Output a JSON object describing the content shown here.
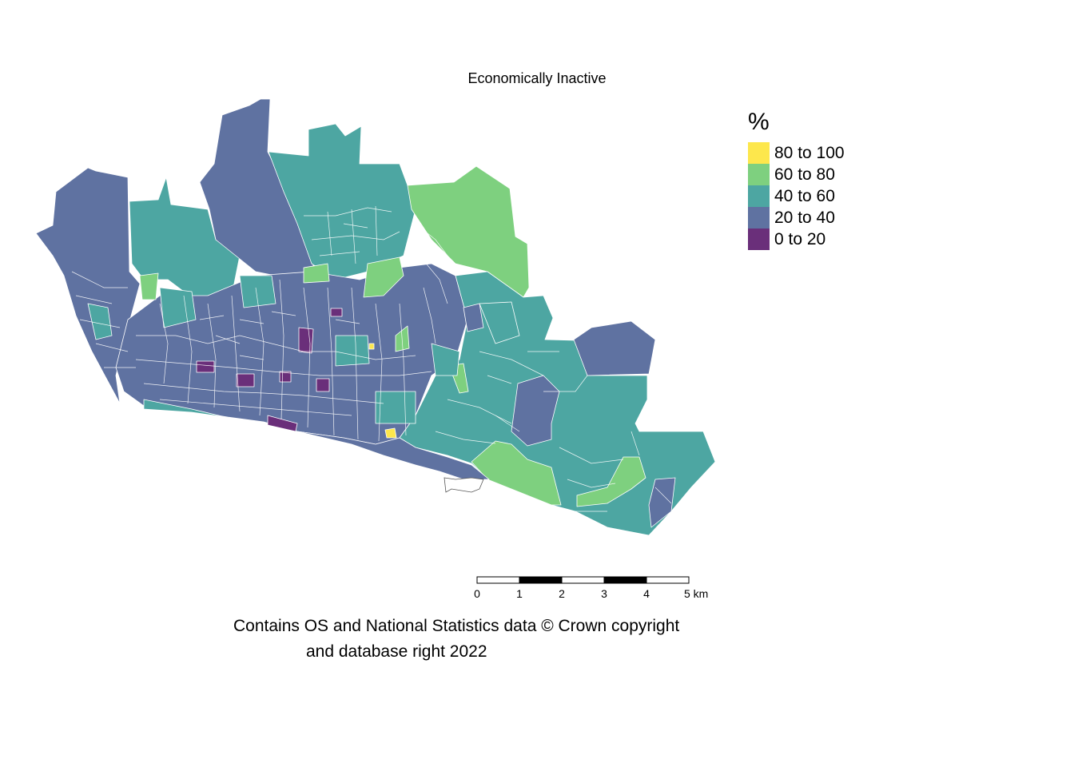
{
  "title": "Economically Inactive",
  "legend": {
    "title": "%",
    "items": [
      {
        "label": "80 to 100",
        "color": "#fde74c"
      },
      {
        "label": "60 to 80",
        "color": "#7ed07f"
      },
      {
        "label": "40 to 60",
        "color": "#4da6a2"
      },
      {
        "label": "20 to 40",
        "color": "#5f72a1"
      },
      {
        "label": "0 to 20",
        "color": "#6a2f7a"
      }
    ]
  },
  "scalebar": {
    "ticks": [
      "0",
      "1",
      "2",
      "3",
      "4",
      "5 km"
    ]
  },
  "credit": {
    "line1": "Contains OS and National Statistics data © Crown copyright",
    "line2": "and database right 2022"
  }
}
